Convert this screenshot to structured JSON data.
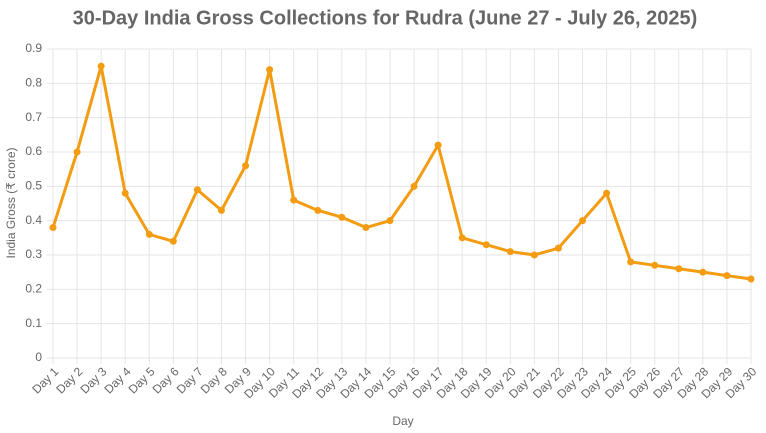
{
  "chart_data": {
    "type": "line",
    "title": "30-Day India Gross Collections for Rudra (June 27 - July 26, 2025)",
    "x_label": "Day",
    "y_label": "India Gross (₹ crore)",
    "categories": [
      "Day 1",
      "Day 2",
      "Day 3",
      "Day 4",
      "Day 5",
      "Day 6",
      "Day 7",
      "Day 8",
      "Day 9",
      "Day 10",
      "Day 11",
      "Day 12",
      "Day 13",
      "Day 14",
      "Day 15",
      "Day 16",
      "Day 17",
      "Day 18",
      "Day 19",
      "Day 20",
      "Day 21",
      "Day 22",
      "Day 23",
      "Day 24",
      "Day 25",
      "Day 26",
      "Day 27",
      "Day 28",
      "Day 29",
      "Day 30"
    ],
    "series": [
      {
        "name": "India Gross",
        "color": "#f39c12",
        "values": [
          0.38,
          0.6,
          0.85,
          0.48,
          0.36,
          0.34,
          0.49,
          0.43,
          0.56,
          0.84,
          0.46,
          0.43,
          0.41,
          0.38,
          0.4,
          0.5,
          0.62,
          0.35,
          0.33,
          0.31,
          0.3,
          0.32,
          0.4,
          0.48,
          0.28,
          0.27,
          0.26,
          0.25,
          0.24,
          0.23
        ]
      }
    ],
    "ylim": [
      0,
      0.9
    ],
    "yticks": [
      0,
      0.1,
      0.2,
      0.3,
      0.4,
      0.5,
      0.6,
      0.7,
      0.8,
      0.9
    ],
    "grid": true
  }
}
